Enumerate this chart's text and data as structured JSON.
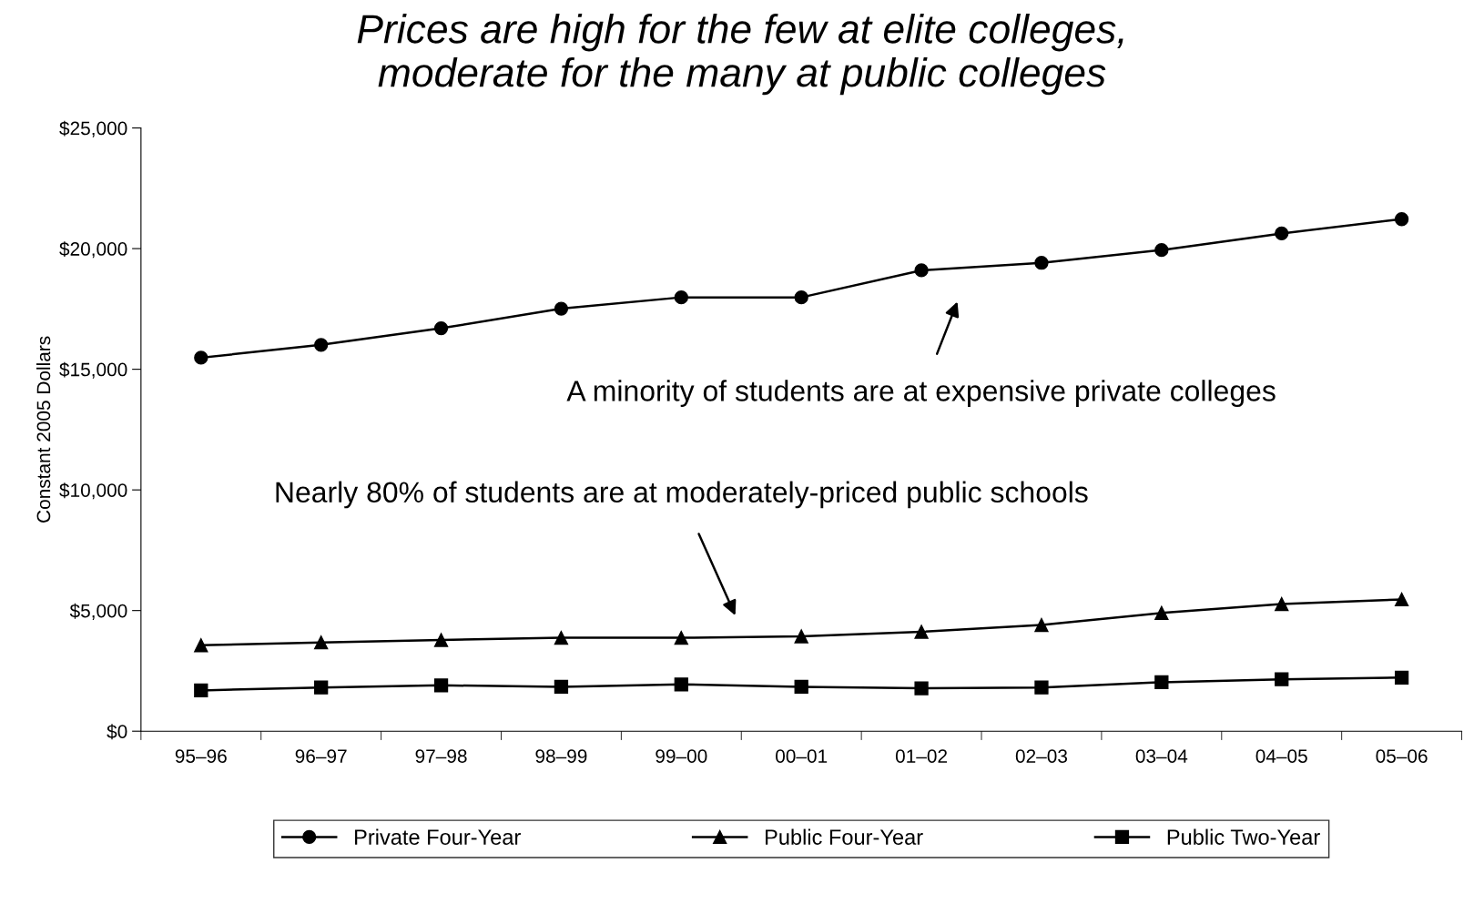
{
  "chart_data": {
    "type": "line",
    "title": "Prices are high for the few at elite colleges,\nmoderate for the many at public colleges",
    "ylabel": "Constant 2005 Dollars",
    "categories": [
      "95–96",
      "96–97",
      "97–98",
      "98–99",
      "99–00",
      "00–01",
      "01–02",
      "02–03",
      "03–04",
      "04–05",
      "05–06"
    ],
    "series": [
      {
        "name": "Private Four-Year",
        "color": "#000000",
        "marker": "circle",
        "values": [
          15480,
          16010,
          16700,
          17510,
          17980,
          17980,
          19100,
          19410,
          19940,
          20630,
          21220
        ]
      },
      {
        "name": "Public Four-Year",
        "color": "#000000",
        "marker": "triangle",
        "values": [
          3560,
          3680,
          3780,
          3870,
          3870,
          3930,
          4120,
          4400,
          4900,
          5270,
          5460
        ]
      },
      {
        "name": "Public Two-Year",
        "color": "#000000",
        "marker": "square",
        "values": [
          1690,
          1810,
          1900,
          1840,
          1940,
          1840,
          1780,
          1810,
          2030,
          2150,
          2220
        ]
      }
    ],
    "ylim": [
      0,
      25000
    ],
    "yticks": [
      {
        "value": 0,
        "label": "$0"
      },
      {
        "value": 5000,
        "label": "$5,000"
      },
      {
        "value": 10000,
        "label": "$10,000"
      },
      {
        "value": 15000,
        "label": "$15,000"
      },
      {
        "value": 20000,
        "label": "$20,000"
      },
      {
        "value": 25000,
        "label": "$25,000"
      }
    ],
    "annotations": [
      "A minority of students are at expensive private colleges",
      "Nearly 80% of students are at moderately-priced public schools"
    ],
    "grid": false,
    "legend": "bottom",
    "line_style": "solid"
  }
}
